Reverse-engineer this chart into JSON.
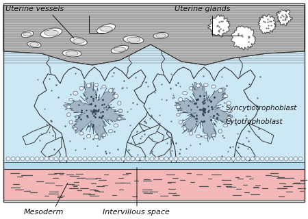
{
  "labels": {
    "uterine_vessels": "Uterine vessels",
    "uterine_glands": "Uterine glands",
    "syncytiotrophoblast": "Syncytiotrophoblast",
    "cytotrophoblast": "Cytotrophoblast",
    "mesoderm": "Mesoderm",
    "intervillous_space": "Intervillous space"
  },
  "colors": {
    "background": "#ffffff",
    "endo_fill": "#b8b8b8",
    "endo_line": "#666666",
    "villi_fill": "#cde8f5",
    "villi_dots": "#334455",
    "syncytio_dark": "#8899aa",
    "cyto_cell_fill": "#e8f0f8",
    "cyto_cell_edge": "#556677",
    "mesoderm_fill": "#f5b8b8",
    "mesoderm_dash": "#555555",
    "text_color": "#111111",
    "outline": "#333333"
  },
  "figsize": [
    4.5,
    3.2
  ],
  "dpi": 100
}
